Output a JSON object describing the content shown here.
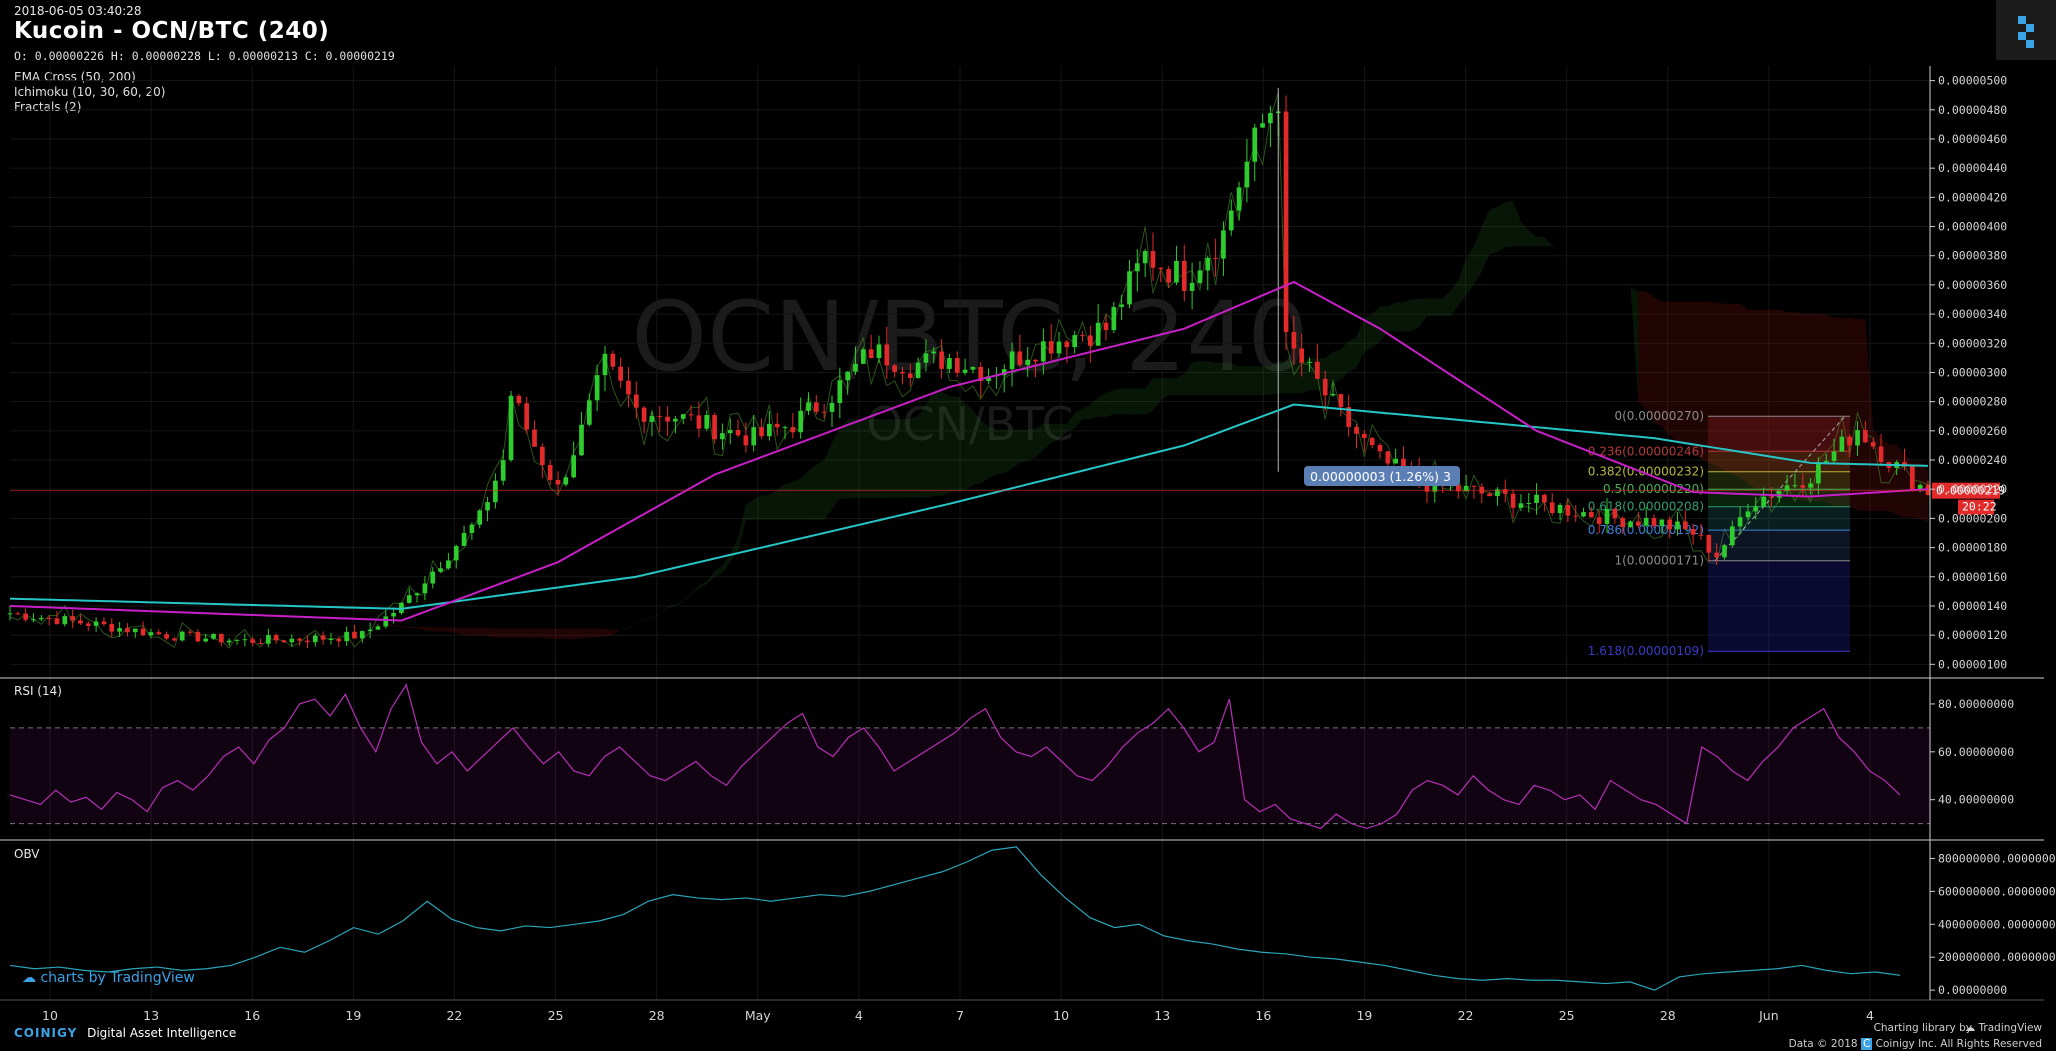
{
  "header": {
    "timestamp": "2018-06-05 03:40:28",
    "title": "Kucoin - OCN/BTC (240)",
    "ohlc": "O: 0.00000226 H: 0.00000228 L: 0.00000213 C: 0.00000219",
    "indicators": [
      "EMA Cross (50, 200)",
      "Ichimoku (10, 30, 60, 20)",
      "Fractals (2)"
    ],
    "watermark_main": "OCN/BTC, 240",
    "watermark_sub": "OCN/BTC"
  },
  "chart_data": [
    {
      "type": "candlestick",
      "title": "Kucoin - OCN/BTC (240)",
      "y_ticks": [
        "0.00000500",
        "0.00000480",
        "0.00000460",
        "0.00000440",
        "0.00000420",
        "0.00000400",
        "0.00000380",
        "0.00000360",
        "0.00000340",
        "0.00000320",
        "0.00000300",
        "0.00000280",
        "0.00000260",
        "0.00000240",
        "0.00000220",
        "0.00000200",
        "0.00000180",
        "0.00000160",
        "0.00000140",
        "0.00000120",
        "0.00000100"
      ],
      "ylim": [
        9.2e-07,
        5.1e-06
      ],
      "x_ticks": [
        "10",
        "13",
        "16",
        "19",
        "22",
        "25",
        "28",
        "May",
        "4",
        "7",
        "10",
        "13",
        "16",
        "19",
        "22",
        "25",
        "28",
        "Jun",
        "4"
      ],
      "close_path": [
        [
          0,
          1.35e-06
        ],
        [
          10,
          1.28e-06
        ],
        [
          20,
          1.2e-06
        ],
        [
          30,
          1.16e-06
        ],
        [
          40,
          1.18e-06
        ],
        [
          45,
          1.2e-06
        ],
        [
          50,
          1.4e-06
        ],
        [
          55,
          1.7e-06
        ],
        [
          60,
          2e-06
        ],
        [
          63,
          2.4e-06
        ],
        [
          64,
          2.85e-06
        ],
        [
          67,
          2.5e-06
        ],
        [
          70,
          2.2e-06
        ],
        [
          73,
          2.6e-06
        ],
        [
          76,
          3.05e-06
        ],
        [
          80,
          2.75e-06
        ],
        [
          85,
          2.7e-06
        ],
        [
          90,
          2.62e-06
        ],
        [
          95,
          2.55e-06
        ],
        [
          100,
          2.65e-06
        ],
        [
          105,
          2.85e-06
        ],
        [
          110,
          3.15e-06
        ],
        [
          115,
          3.05e-06
        ],
        [
          120,
          3.1e-06
        ],
        [
          125,
          3e-06
        ],
        [
          130,
          3.15e-06
        ],
        [
          135,
          3.25e-06
        ],
        [
          140,
          3.3e-06
        ],
        [
          145,
          3.8e-06
        ],
        [
          150,
          3.65e-06
        ],
        [
          155,
          3.95e-06
        ],
        [
          157,
          4.3e-06
        ],
        [
          160,
          4.7e-06
        ],
        [
          162,
          4.9e-06
        ],
        [
          163,
          3.2e-06
        ],
        [
          166,
          3e-06
        ],
        [
          170,
          2.7e-06
        ],
        [
          175,
          2.4e-06
        ],
        [
          180,
          2.25e-06
        ],
        [
          185,
          2.2e-06
        ],
        [
          190,
          2.15e-06
        ],
        [
          195,
          2.1e-06
        ],
        [
          200,
          2.05e-06
        ],
        [
          205,
          2e-06
        ],
        [
          210,
          1.98e-06
        ],
        [
          215,
          1.9e-06
        ],
        [
          218,
          1.75e-06
        ],
        [
          220,
          1.9e-06
        ],
        [
          222,
          2.1e-06
        ],
        [
          226,
          2.2e-06
        ],
        [
          230,
          2.3e-06
        ],
        [
          234,
          2.5e-06
        ],
        [
          236,
          2.62e-06
        ],
        [
          240,
          2.4e-06
        ],
        [
          243,
          2.26e-06
        ],
        [
          245,
          2.19e-06
        ]
      ],
      "ema_50_path": [
        [
          0,
          1.4e-06
        ],
        [
          50,
          1.3e-06
        ],
        [
          70,
          1.7e-06
        ],
        [
          90,
          2.3e-06
        ],
        [
          120,
          2.9e-06
        ],
        [
          150,
          3.3e-06
        ],
        [
          164,
          3.62e-06
        ],
        [
          175,
          3.3e-06
        ],
        [
          195,
          2.6e-06
        ],
        [
          215,
          2.18e-06
        ],
        [
          230,
          2.15e-06
        ],
        [
          245,
          2.2e-06
        ]
      ],
      "ema_200_path": [
        [
          0,
          1.45e-06
        ],
        [
          50,
          1.38e-06
        ],
        [
          80,
          1.6e-06
        ],
        [
          120,
          2.1e-06
        ],
        [
          150,
          2.5e-06
        ],
        [
          164,
          2.78e-06
        ],
        [
          180,
          2.7e-06
        ],
        [
          210,
          2.55e-06
        ],
        [
          230,
          2.38e-06
        ],
        [
          245,
          2.36e-06
        ]
      ],
      "last_price": "0.00000219",
      "countdown": "20:22",
      "measure_label": "0.00000003 (1.26%) 3",
      "fibonacci": [
        {
          "label": "0(0.00000270)",
          "value": 2.7e-06,
          "color": "#8a8a8a"
        },
        {
          "label": "0.236(0.00000246)",
          "value": 2.46e-06,
          "color": "#b33a3a"
        },
        {
          "label": "0.382(0.00000232)",
          "value": 2.32e-06,
          "color": "#b7b83a"
        },
        {
          "label": "0.5(0.00000220)",
          "value": 2.2e-06,
          "color": "#4caf50"
        },
        {
          "label": "0.618(0.00000208)",
          "value": 2.08e-06,
          "color": "#2e9e72"
        },
        {
          "label": "0.786(0.00000192)",
          "value": 1.92e-06,
          "color": "#3b7dd8"
        },
        {
          "label": "1(0.00000171)",
          "value": 1.71e-06,
          "color": "#8a8a8a"
        },
        {
          "label": "1.618(0.00000109)",
          "value": 1.09e-06,
          "color": "#3a3ac9"
        }
      ]
    },
    {
      "type": "line",
      "title": "RSI (14)",
      "y_ticks": [
        "80.00000000",
        "60.00000000",
        "40.00000000"
      ],
      "ylim": [
        24,
        90
      ],
      "bands": [
        30,
        70
      ],
      "values": [
        42,
        40,
        38,
        44,
        39,
        41,
        36,
        43,
        40,
        35,
        45,
        48,
        44,
        50,
        58,
        62,
        55,
        65,
        70,
        80,
        82,
        75,
        84,
        70,
        60,
        78,
        88,
        64,
        55,
        60,
        52,
        58,
        64,
        70,
        62,
        55,
        60,
        52,
        50,
        58,
        62,
        56,
        50,
        48,
        52,
        56,
        50,
        46,
        54,
        60,
        66,
        72,
        76,
        62,
        58,
        66,
        70,
        62,
        52,
        56,
        60,
        64,
        68,
        74,
        78,
        66,
        60,
        58,
        62,
        56,
        50,
        48,
        54,
        62,
        68,
        72,
        78,
        70,
        60,
        64,
        82,
        40,
        35,
        38,
        32,
        30,
        28,
        34,
        30,
        28,
        30,
        34,
        44,
        48,
        46,
        42,
        50,
        44,
        40,
        38,
        46,
        44,
        40,
        42,
        36,
        48,
        44,
        40,
        38,
        34,
        30,
        62,
        58,
        52,
        48,
        56,
        62,
        70,
        74,
        78,
        66,
        60,
        52,
        48,
        42
      ]
    },
    {
      "type": "line",
      "title": "OBV",
      "y_ticks": [
        "800000000.00000000",
        "600000000.00000000",
        "400000000.00000000",
        "200000000.00000000",
        "0.00000000"
      ],
      "ylim": [
        -60000000,
        900000000
      ],
      "values": [
        150000000,
        130000000,
        140000000,
        120000000,
        110000000,
        130000000,
        140000000,
        120000000,
        130000000,
        150000000,
        200000000,
        260000000,
        230000000,
        300000000,
        380000000,
        340000000,
        420000000,
        540000000,
        430000000,
        380000000,
        360000000,
        390000000,
        380000000,
        400000000,
        420000000,
        460000000,
        540000000,
        580000000,
        560000000,
        550000000,
        560000000,
        540000000,
        560000000,
        580000000,
        570000000,
        600000000,
        640000000,
        680000000,
        720000000,
        780000000,
        850000000,
        870000000,
        700000000,
        560000000,
        440000000,
        380000000,
        400000000,
        330000000,
        300000000,
        280000000,
        250000000,
        230000000,
        220000000,
        200000000,
        190000000,
        170000000,
        150000000,
        120000000,
        90000000,
        70000000,
        60000000,
        70000000,
        60000000,
        60000000,
        50000000,
        40000000,
        50000000,
        0,
        80000000,
        100000000,
        110000000,
        120000000,
        130000000,
        150000000,
        120000000,
        100000000,
        110000000,
        90000000
      ]
    }
  ],
  "footer": {
    "tv_brand": "charts by TradingView",
    "coinigy": "COINIGY",
    "coinigy_tagline": "Digital Asset Intelligence",
    "charting_library": "Charting library by",
    "tradingview": "TradingView",
    "data_copyright": "Data © 2018",
    "coinigy_rights": "Coinigy Inc. All Rights Reserved"
  }
}
